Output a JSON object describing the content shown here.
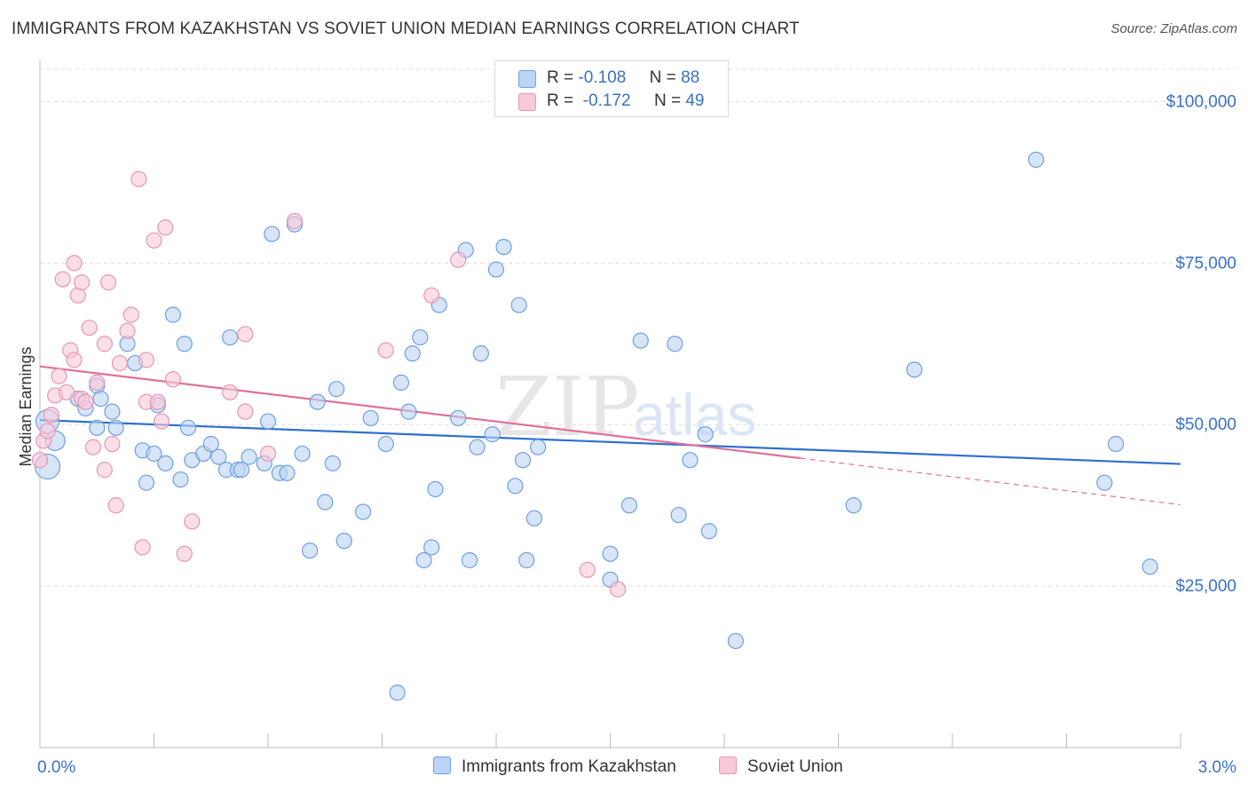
{
  "header": {
    "title": "IMMIGRANTS FROM KAZAKHSTAN VS SOVIET UNION MEDIAN EARNINGS CORRELATION CHART",
    "source": "Source: ZipAtlas.com"
  },
  "legend": {
    "r_label": "R =",
    "n_label": "N =",
    "rows": [
      {
        "r": "-0.108",
        "n": "88"
      },
      {
        "r": "-0.172",
        "n": "49"
      }
    ]
  },
  "watermark": "ZIPatlas",
  "colors": {
    "blue_fill": "#bcd4f5",
    "blue_stroke": "#6f9fe0",
    "blue_line": "#2f6fcf",
    "pink_fill": "#f8c9d8",
    "pink_stroke": "#e895b3",
    "pink_line": "#e0709a",
    "tick_label": "#3a70c7"
  },
  "chart_data": {
    "type": "scatter",
    "title": "IMMIGRANTS FROM KAZAKHSTAN VS SOVIET UNION MEDIAN EARNINGS CORRELATION CHART",
    "xlabel": "",
    "ylabel": "Median Earnings",
    "xlim": [
      0,
      3.0
    ],
    "ylim": [
      0,
      105000
    ],
    "x_tick_labels": [
      "0.0%",
      "3.0%"
    ],
    "y_ticks": [
      25000,
      50000,
      75000,
      100000
    ],
    "y_tick_labels": [
      "$25,000",
      "$50,000",
      "$75,000",
      "$100,000"
    ],
    "grid": "horizontal dashed",
    "legend_position": "top-center",
    "series": [
      {
        "name": "Immigrants from Kazakhstan",
        "r": -0.108,
        "n": 88,
        "trend": {
          "x": [
            0.0,
            3.0
          ],
          "y": [
            50700,
            43900
          ]
        },
        "points": [
          [
            0.02,
            43500
          ],
          [
            0.02,
            50500
          ],
          [
            0.04,
            47500
          ],
          [
            0.1,
            54000
          ],
          [
            0.12,
            52500
          ],
          [
            0.15,
            49500
          ],
          [
            0.15,
            56000
          ],
          [
            0.16,
            54000
          ],
          [
            0.19,
            52000
          ],
          [
            0.2,
            49500
          ],
          [
            0.23,
            62500
          ],
          [
            0.25,
            59500
          ],
          [
            0.27,
            46000
          ],
          [
            0.28,
            41000
          ],
          [
            0.3,
            45500
          ],
          [
            0.31,
            53000
          ],
          [
            0.33,
            44000
          ],
          [
            0.35,
            67000
          ],
          [
            0.37,
            41500
          ],
          [
            0.38,
            62500
          ],
          [
            0.39,
            49500
          ],
          [
            0.4,
            44500
          ],
          [
            0.43,
            45500
          ],
          [
            0.45,
            47000
          ],
          [
            0.47,
            45000
          ],
          [
            0.49,
            43000
          ],
          [
            0.5,
            63500
          ],
          [
            0.52,
            43000
          ],
          [
            0.53,
            43000
          ],
          [
            0.55,
            45000
          ],
          [
            0.59,
            44000
          ],
          [
            0.6,
            50500
          ],
          [
            0.61,
            79500
          ],
          [
            0.63,
            42500
          ],
          [
            0.65,
            42500
          ],
          [
            0.67,
            81000
          ],
          [
            0.69,
            45500
          ],
          [
            0.71,
            30500
          ],
          [
            0.73,
            53500
          ],
          [
            0.75,
            38000
          ],
          [
            0.77,
            44000
          ],
          [
            0.78,
            55500
          ],
          [
            0.8,
            32000
          ],
          [
            0.85,
            36500
          ],
          [
            0.87,
            51000
          ],
          [
            0.91,
            47000
          ],
          [
            0.95,
            56500
          ],
          [
            0.94,
            8500
          ],
          [
            0.97,
            52000
          ],
          [
            0.98,
            61000
          ],
          [
            1.0,
            63500
          ],
          [
            1.01,
            29000
          ],
          [
            1.03,
            31000
          ],
          [
            1.04,
            40000
          ],
          [
            1.05,
            68500
          ],
          [
            1.1,
            51000
          ],
          [
            1.12,
            77000
          ],
          [
            1.13,
            29000
          ],
          [
            1.15,
            46500
          ],
          [
            1.16,
            61000
          ],
          [
            1.19,
            48500
          ],
          [
            1.2,
            74000
          ],
          [
            1.22,
            77500
          ],
          [
            1.25,
            40500
          ],
          [
            1.26,
            68500
          ],
          [
            1.27,
            44500
          ],
          [
            1.28,
            29000
          ],
          [
            1.3,
            35500
          ],
          [
            1.31,
            46500
          ],
          [
            1.5,
            26000
          ],
          [
            1.5,
            30000
          ],
          [
            1.55,
            37500
          ],
          [
            1.58,
            63000
          ],
          [
            1.67,
            62500
          ],
          [
            1.68,
            36000
          ],
          [
            1.71,
            44500
          ],
          [
            1.75,
            48500
          ],
          [
            1.76,
            33500
          ],
          [
            1.83,
            16500
          ],
          [
            2.14,
            37500
          ],
          [
            2.3,
            58500
          ],
          [
            2.62,
            91000
          ],
          [
            2.8,
            41000
          ],
          [
            2.83,
            47000
          ],
          [
            2.92,
            28000
          ]
        ]
      },
      {
        "name": "Soviet Union",
        "r": -0.172,
        "n": 49,
        "trend": {
          "x": [
            0.0,
            2.0
          ],
          "y": [
            59000,
            44800
          ]
        },
        "trend_dashed": {
          "x": [
            2.0,
            3.0
          ],
          "y": [
            44800,
            37600
          ]
        },
        "points": [
          [
            0.0,
            44500
          ],
          [
            0.01,
            47500
          ],
          [
            0.02,
            49000
          ],
          [
            0.03,
            51500
          ],
          [
            0.04,
            54500
          ],
          [
            0.05,
            57500
          ],
          [
            0.06,
            72500
          ],
          [
            0.07,
            55000
          ],
          [
            0.08,
            61500
          ],
          [
            0.09,
            60000
          ],
          [
            0.09,
            75000
          ],
          [
            0.1,
            70000
          ],
          [
            0.11,
            54000
          ],
          [
            0.11,
            72000
          ],
          [
            0.12,
            53500
          ],
          [
            0.13,
            65000
          ],
          [
            0.14,
            46500
          ],
          [
            0.15,
            56500
          ],
          [
            0.17,
            43000
          ],
          [
            0.17,
            62500
          ],
          [
            0.18,
            72000
          ],
          [
            0.19,
            47000
          ],
          [
            0.2,
            37500
          ],
          [
            0.21,
            59500
          ],
          [
            0.23,
            64500
          ],
          [
            0.24,
            67000
          ],
          [
            0.26,
            88000
          ],
          [
            0.27,
            31000
          ],
          [
            0.28,
            53500
          ],
          [
            0.28,
            60000
          ],
          [
            0.3,
            78500
          ],
          [
            0.31,
            53500
          ],
          [
            0.32,
            50500
          ],
          [
            0.33,
            80500
          ],
          [
            0.35,
            57000
          ],
          [
            0.38,
            30000
          ],
          [
            0.4,
            35000
          ],
          [
            0.5,
            55000
          ],
          [
            0.54,
            52000
          ],
          [
            0.54,
            64000
          ],
          [
            0.6,
            45500
          ],
          [
            0.67,
            81500
          ],
          [
            0.91,
            61500
          ],
          [
            1.03,
            70000
          ],
          [
            1.1,
            75500
          ],
          [
            1.44,
            27500
          ],
          [
            1.52,
            24500
          ]
        ]
      }
    ]
  }
}
